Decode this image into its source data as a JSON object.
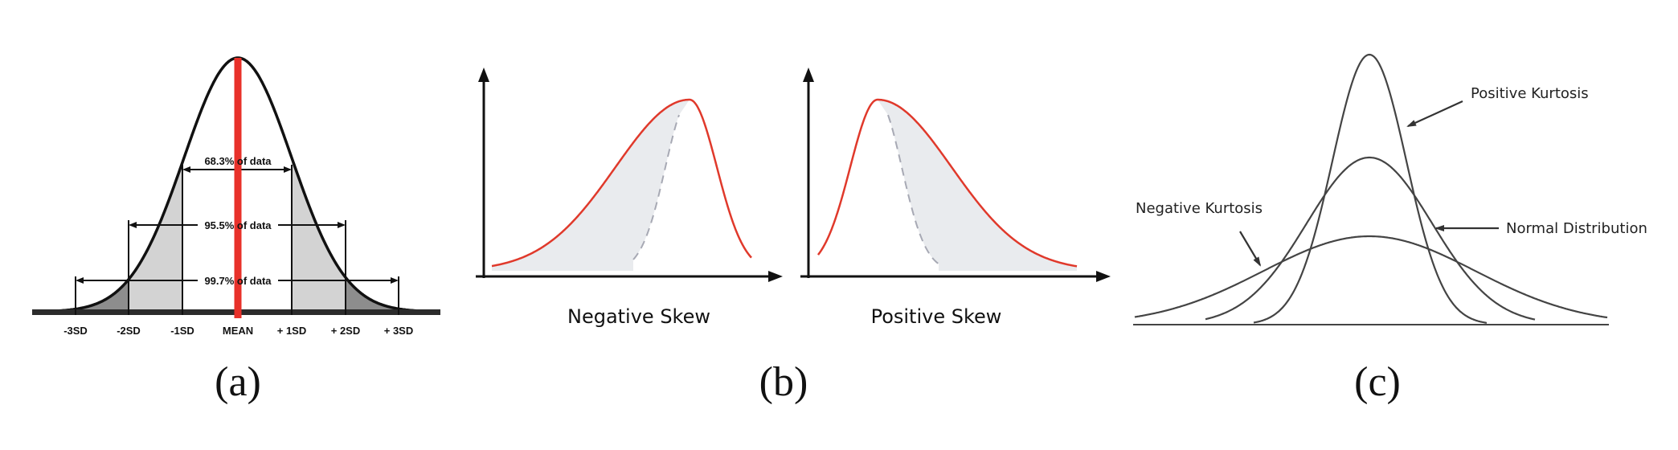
{
  "panels": {
    "a": {
      "caption": "(a)",
      "ranges": [
        "68.3% of data",
        "95.5% of data",
        "99.7% of data"
      ],
      "ticks": [
        "-3SD",
        "-2SD",
        "-1SD",
        "MEAN",
        "+ 1SD",
        "+ 2SD",
        "+ 3SD"
      ]
    },
    "b": {
      "caption": "(b)",
      "left_label": "Negative Skew",
      "right_label": "Positive Skew"
    },
    "c": {
      "caption": "(c)",
      "labels": {
        "positive": "Positive Kurtosis",
        "normal": "Normal Distribution",
        "negative": "Negative Kurtosis"
      }
    }
  },
  "colors": {
    "mean_line": "#e8312a",
    "skew_curve": "#e0392b",
    "shade_light": "#d3d3d3",
    "shade_dark": "#8d8d8d",
    "shade_skew": "#e9ebee"
  }
}
